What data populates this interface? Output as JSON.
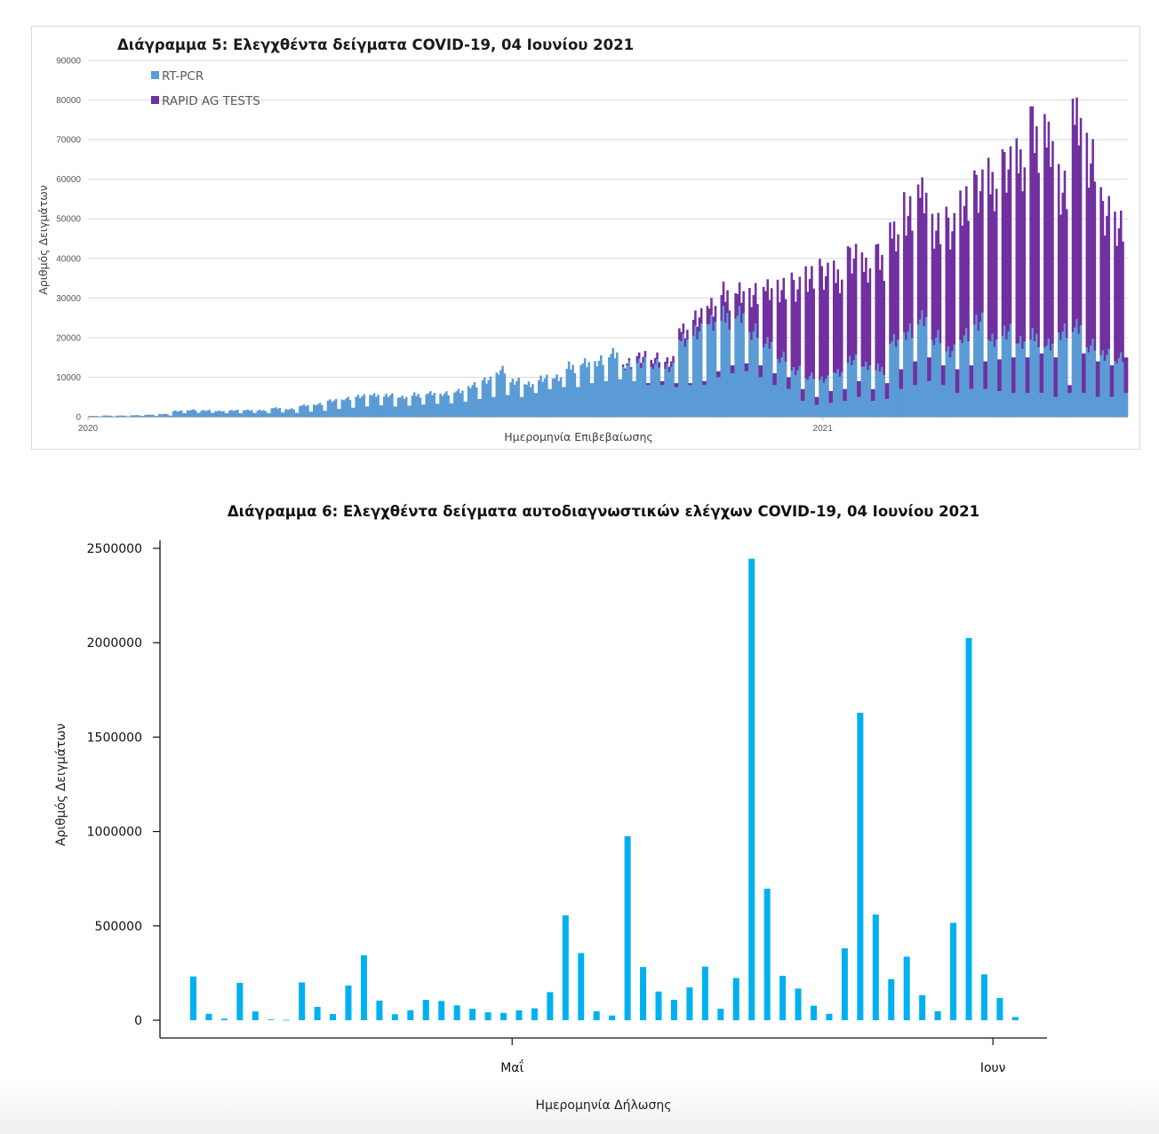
{
  "chart_data": [
    {
      "id": "chart5",
      "type": "bar",
      "stacked": true,
      "title": "Διάγραμμα 5: Ελεγχθέντα δείγματα COVID-19, 04 Ιουνίου 2021",
      "xlabel": "Ημερομηνία Επιβεβαίωσης",
      "ylabel": "Αριθμός Δειγμάτων",
      "ylim": [
        0,
        90000
      ],
      "yticks": [
        0,
        10000,
        20000,
        30000,
        40000,
        50000,
        60000,
        70000,
        80000,
        90000
      ],
      "grid": true,
      "legend_position": "top-left",
      "x_tick_labels": [
        {
          "label": "2020",
          "day_index": 0
        },
        {
          "label": "2021",
          "day_index": 366
        }
      ],
      "granularity": "daily, weekly levels listed (weekday level / weekend low per week, starting week of 1 Jan 2020)",
      "series": [
        {
          "name": "RT-PCR",
          "color": "#5b9bd5"
        },
        {
          "name": "RAPID AG TESTS",
          "color": "#7030a0"
        }
      ],
      "weeks": [
        {
          "pcr": 200,
          "pcr_low": 100,
          "rapid": 0,
          "rapid_low": 0
        },
        {
          "pcr": 300,
          "pcr_low": 100,
          "rapid": 0,
          "rapid_low": 0
        },
        {
          "pcr": 300,
          "pcr_low": 100,
          "rapid": 0,
          "rapid_low": 0
        },
        {
          "pcr": 400,
          "pcr_low": 200,
          "rapid": 0,
          "rapid_low": 0
        },
        {
          "pcr": 500,
          "pcr_low": 200,
          "rapid": 0,
          "rapid_low": 0
        },
        {
          "pcr": 700,
          "pcr_low": 300,
          "rapid": 0,
          "rapid_low": 0
        },
        {
          "pcr": 1500,
          "pcr_low": 900,
          "rapid": 0,
          "rapid_low": 0
        },
        {
          "pcr": 1700,
          "pcr_low": 1000,
          "rapid": 0,
          "rapid_low": 0
        },
        {
          "pcr": 1600,
          "pcr_low": 1000,
          "rapid": 0,
          "rapid_low": 0
        },
        {
          "pcr": 1500,
          "pcr_low": 900,
          "rapid": 0,
          "rapid_low": 0
        },
        {
          "pcr": 1600,
          "pcr_low": 900,
          "rapid": 0,
          "rapid_low": 0
        },
        {
          "pcr": 1700,
          "pcr_low": 1000,
          "rapid": 0,
          "rapid_low": 0
        },
        {
          "pcr": 1600,
          "pcr_low": 900,
          "rapid": 0,
          "rapid_low": 0
        },
        {
          "pcr": 2200,
          "pcr_low": 1100,
          "rapid": 0,
          "rapid_low": 0
        },
        {
          "pcr": 2000,
          "pcr_low": 1000,
          "rapid": 0,
          "rapid_low": 0
        },
        {
          "pcr": 2800,
          "pcr_low": 1300,
          "rapid": 0,
          "rapid_low": 0
        },
        {
          "pcr": 3200,
          "pcr_low": 1500,
          "rapid": 0,
          "rapid_low": 0
        },
        {
          "pcr": 4200,
          "pcr_low": 2000,
          "rapid": 0,
          "rapid_low": 0
        },
        {
          "pcr": 4500,
          "pcr_low": 2300,
          "rapid": 0,
          "rapid_low": 0
        },
        {
          "pcr": 5200,
          "pcr_low": 2600,
          "rapid": 0,
          "rapid_low": 0
        },
        {
          "pcr": 5700,
          "pcr_low": 2900,
          "rapid": 0,
          "rapid_low": 0
        },
        {
          "pcr": 5300,
          "pcr_low": 2600,
          "rapid": 0,
          "rapid_low": 0
        },
        {
          "pcr": 5000,
          "pcr_low": 2800,
          "rapid": 0,
          "rapid_low": 0
        },
        {
          "pcr": 5500,
          "pcr_low": 3100,
          "rapid": 0,
          "rapid_low": 0
        },
        {
          "pcr": 5900,
          "pcr_low": 3300,
          "rapid": 0,
          "rapid_low": 0
        },
        {
          "pcr": 6000,
          "pcr_low": 3400,
          "rapid": 0,
          "rapid_low": 0
        },
        {
          "pcr": 6300,
          "pcr_low": 3800,
          "rapid": 0,
          "rapid_low": 0
        },
        {
          "pcr": 8000,
          "pcr_low": 4500,
          "rapid": 0,
          "rapid_low": 0
        },
        {
          "pcr": 9500,
          "pcr_low": 5000,
          "rapid": 0,
          "rapid_low": 0
        },
        {
          "pcr": 11500,
          "pcr_low": 5500,
          "rapid": 0,
          "rapid_low": 0
        },
        {
          "pcr": 9000,
          "pcr_low": 5000,
          "rapid": 0,
          "rapid_low": 0
        },
        {
          "pcr": 8500,
          "pcr_low": 6000,
          "rapid": 0,
          "rapid_low": 0
        },
        {
          "pcr": 9500,
          "pcr_low": 7000,
          "rapid": 0,
          "rapid_low": 0
        },
        {
          "pcr": 10000,
          "pcr_low": 7500,
          "rapid": 0,
          "rapid_low": 0
        },
        {
          "pcr": 12500,
          "pcr_low": 7500,
          "rapid": 0,
          "rapid_low": 0
        },
        {
          "pcr": 13500,
          "pcr_low": 8500,
          "rapid": 0,
          "rapid_low": 0
        },
        {
          "pcr": 14500,
          "pcr_low": 9000,
          "rapid": 0,
          "rapid_low": 0
        },
        {
          "pcr": 15500,
          "pcr_low": 9500,
          "rapid": 0,
          "rapid_low": 0
        },
        {
          "pcr": 13000,
          "pcr_low": 9000,
          "rapid": 500,
          "rapid_low": 0
        },
        {
          "pcr": 14000,
          "pcr_low": 8000,
          "rapid": 1500,
          "rapid_low": 500
        },
        {
          "pcr": 13000,
          "pcr_low": 8000,
          "rapid": 1500,
          "rapid_low": 1000
        },
        {
          "pcr": 12500,
          "pcr_low": 7500,
          "rapid": 1500,
          "rapid_low": 1000
        },
        {
          "pcr": 20000,
          "pcr_low": 8000,
          "rapid": 2500,
          "rapid_low": 500
        },
        {
          "pcr": 21000,
          "pcr_low": 8000,
          "rapid": 3500,
          "rapid_low": 1000
        },
        {
          "pcr": 24000,
          "pcr_low": 10000,
          "rapid": 4000,
          "rapid_low": 1500
        },
        {
          "pcr": 25000,
          "pcr_low": 11000,
          "rapid": 5500,
          "rapid_low": 2000
        },
        {
          "pcr": 25500,
          "pcr_low": 11500,
          "rapid": 5500,
          "rapid_low": 2000
        },
        {
          "pcr": 22000,
          "pcr_low": 10000,
          "rapid": 9500,
          "rapid_low": 3000
        },
        {
          "pcr": 18000,
          "pcr_low": 8000,
          "rapid": 13000,
          "rapid_low": 3000
        },
        {
          "pcr": 15000,
          "pcr_low": 7000,
          "rapid": 17000,
          "rapid_low": 3000
        },
        {
          "pcr": 12000,
          "pcr_low": 4000,
          "rapid": 21000,
          "rapid_low": 3000
        },
        {
          "pcr": 10000,
          "pcr_low": 3000,
          "rapid": 24000,
          "rapid_low": 2000
        },
        {
          "pcr": 9500,
          "pcr_low": 3500,
          "rapid": 26000,
          "rapid_low": 3000
        },
        {
          "pcr": 11500,
          "pcr_low": 4000,
          "rapid": 24000,
          "rapid_low": 3000
        },
        {
          "pcr": 14000,
          "pcr_low": 5000,
          "rapid": 25000,
          "rapid_low": 4000
        },
        {
          "pcr": 13000,
          "pcr_low": 4000,
          "rapid": 24500,
          "rapid_low": 3000
        },
        {
          "pcr": 12000,
          "pcr_low": 4500,
          "rapid": 27000,
          "rapid_low": 4000
        },
        {
          "pcr": 19000,
          "pcr_low": 7000,
          "rapid": 26000,
          "rapid_low": 5000
        },
        {
          "pcr": 22000,
          "pcr_low": 8000,
          "rapid": 30000,
          "rapid_low": 6000
        },
        {
          "pcr": 24000,
          "pcr_low": 9000,
          "rapid": 30000,
          "rapid_low": 6000
        },
        {
          "pcr": 20000,
          "pcr_low": 8000,
          "rapid": 27000,
          "rapid_low": 5000
        },
        {
          "pcr": 17000,
          "pcr_low": 6000,
          "rapid": 31000,
          "rapid_low": 6000
        },
        {
          "pcr": 20000,
          "pcr_low": 7000,
          "rapid": 32000,
          "rapid_low": 6000
        },
        {
          "pcr": 24000,
          "pcr_low": 7000,
          "rapid": 33000,
          "rapid_low": 7000
        },
        {
          "pcr": 20000,
          "pcr_low": 6500,
          "rapid": 39000,
          "rapid_low": 8000
        },
        {
          "pcr": 21000,
          "pcr_low": 6000,
          "rapid": 40000,
          "rapid_low": 9000
        },
        {
          "pcr": 19000,
          "pcr_low": 6000,
          "rapid": 44000,
          "rapid_low": 9000
        },
        {
          "pcr": 20000,
          "pcr_low": 6000,
          "rapid": 50000,
          "rapid_low": 10000
        },
        {
          "pcr": 18000,
          "pcr_low": 5000,
          "rapid": 50000,
          "rapid_low": 10000
        },
        {
          "pcr": 22000,
          "pcr_low": 6000,
          "rapid": 36000,
          "rapid_low": 2000
        },
        {
          "pcr": 22000,
          "pcr_low": 6000,
          "rapid": 50000,
          "rapid_low": 10000
        },
        {
          "pcr": 18000,
          "pcr_low": 5000,
          "rapid": 46000,
          "rapid_low": 9000
        },
        {
          "pcr": 16000,
          "pcr_low": 5000,
          "rapid": 36000,
          "rapid_low": 8000
        },
        {
          "pcr": 14500,
          "pcr_low": 6000,
          "rapid": 32000,
          "rapid_low": 9000
        }
      ]
    },
    {
      "id": "chart6",
      "type": "bar",
      "title": "Διάγραμμα 6: Ελεγχθέντα δείγματα αυτοδιαγνωστικών ελέγχων COVID-19, 04 Ιουνίου 2021",
      "xlabel": "Ημερομηνία Δήλωσης",
      "ylabel": "Αριθμός Δειγμάτων",
      "ylim": [
        0,
        2500000
      ],
      "yticks": [
        0,
        500000,
        1000000,
        1500000,
        2000000,
        2500000
      ],
      "grid": false,
      "color": "#00b0f0",
      "x_tick_labels": [
        {
          "label": "Μαΐ",
          "bar_index": 21
        },
        {
          "label": "Ιουν",
          "bar_index": 52
        }
      ],
      "values": [
        232000,
        34000,
        8000,
        198000,
        47000,
        4000,
        2000,
        200000,
        71000,
        33000,
        184000,
        344000,
        104000,
        32000,
        53000,
        108000,
        102000,
        79000,
        61000,
        42000,
        39000,
        53000,
        63000,
        149000,
        556000,
        356000,
        48000,
        25000,
        975000,
        282000,
        152000,
        108000,
        174000,
        284000,
        61000,
        224000,
        2445000,
        697000,
        235000,
        168000,
        77000,
        34000,
        381000,
        1629000,
        560000,
        218000,
        337000,
        133000,
        48000,
        516000,
        2025000,
        243000,
        118000,
        17000
      ]
    }
  ]
}
